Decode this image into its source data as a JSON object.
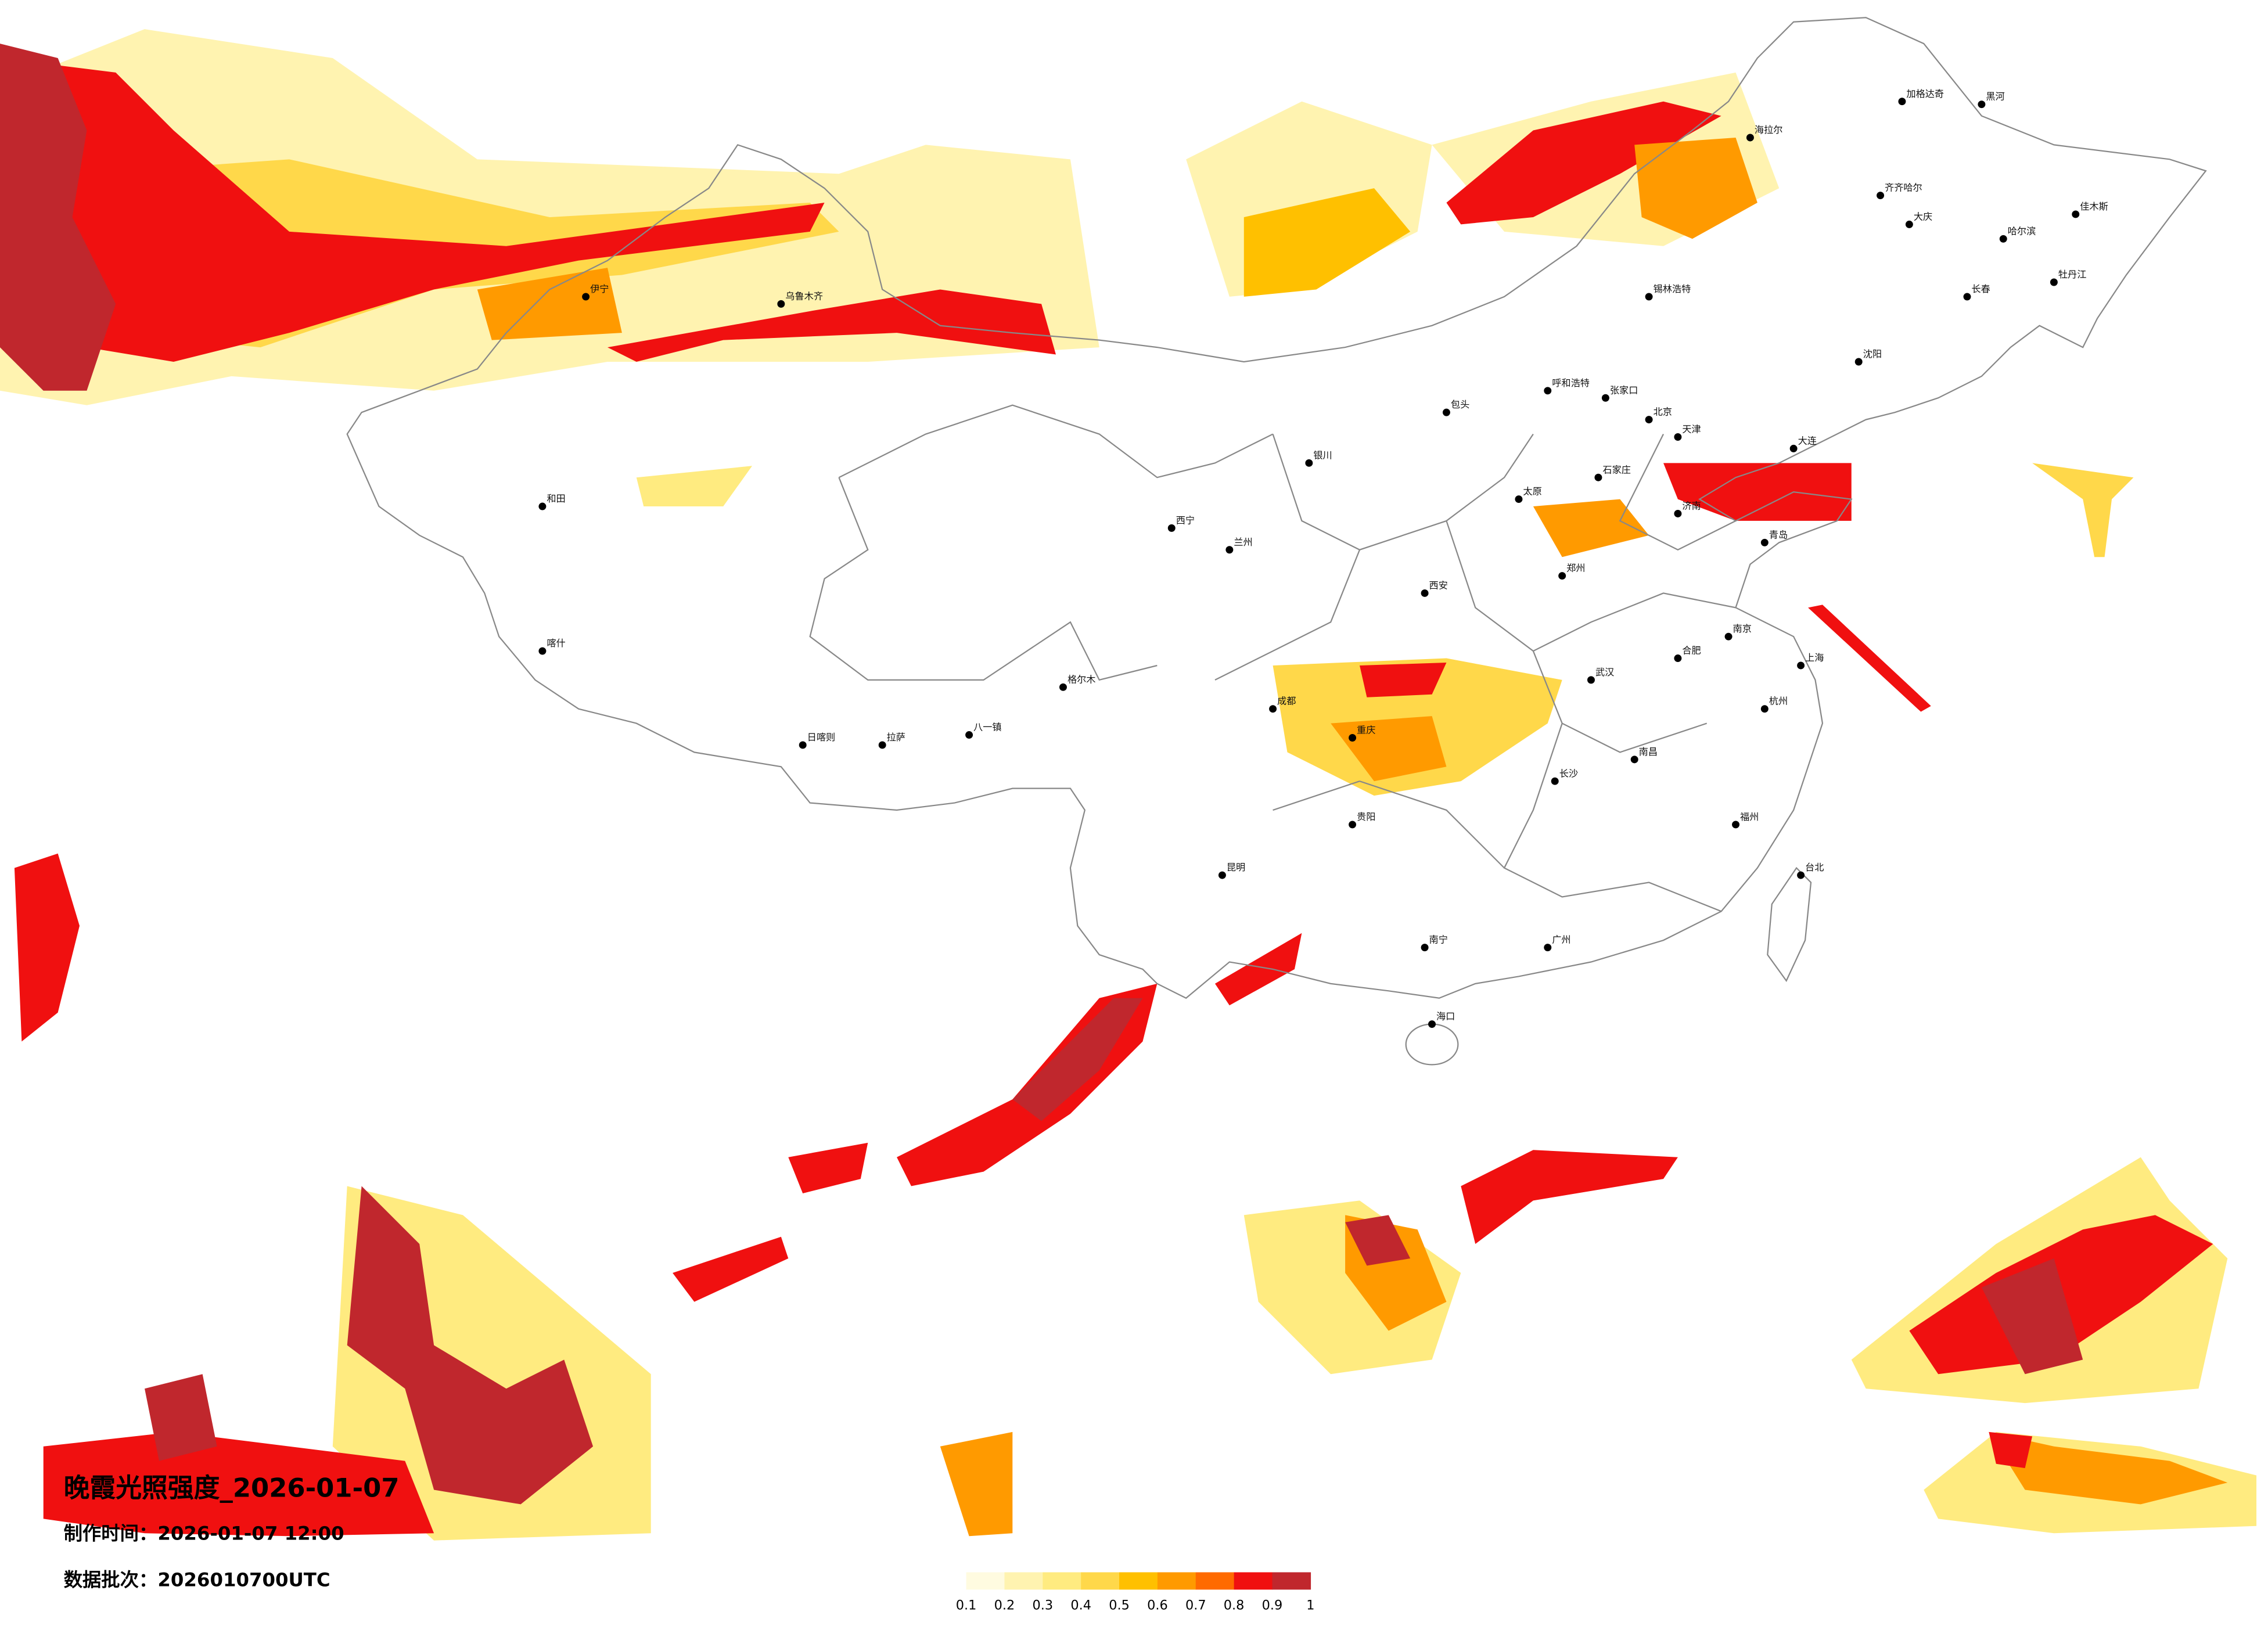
{
  "title": "晚霞光照强度_2026-01-07",
  "made_time": "制作时间：2026-01-07 12:00",
  "batch": "数据批次：2026010700UTC",
  "legend": {
    "colors": [
      "#fffbe0",
      "#fff3b0",
      "#ffeb80",
      "#ffd84a",
      "#ffc000",
      "#ff9a00",
      "#ff6a00",
      "#f01010",
      "#c0272d"
    ],
    "ticks": [
      0.1,
      0.2,
      0.3,
      0.4,
      0.5,
      0.6,
      0.7,
      0.8,
      0.9,
      1
    ]
  },
  "cities": [
    "北京",
    "天津",
    "石家庄",
    "太原",
    "济南",
    "郑州",
    "西安",
    "武汉",
    "长沙",
    "南昌",
    "合肥",
    "南京",
    "上海",
    "杭州",
    "福州",
    "广州",
    "南宁",
    "海口",
    "贵阳",
    "昆明",
    "成都",
    "重庆",
    "兰州",
    "西宁",
    "银川",
    "呼和浩特",
    "哈尔滨",
    "长春",
    "沈阳",
    "乌鲁木齐",
    "拉萨",
    "台北",
    "大连",
    "青岛",
    "伊宁",
    "喀什",
    "和田",
    "日喀则",
    "八一镇",
    "格尔木",
    "锡林浩特",
    "海拉尔",
    "加格达奇",
    "黑河",
    "齐齐哈尔",
    "大庆",
    "佳木斯",
    "牡丹江",
    "包头",
    "张家口"
  ]
}
